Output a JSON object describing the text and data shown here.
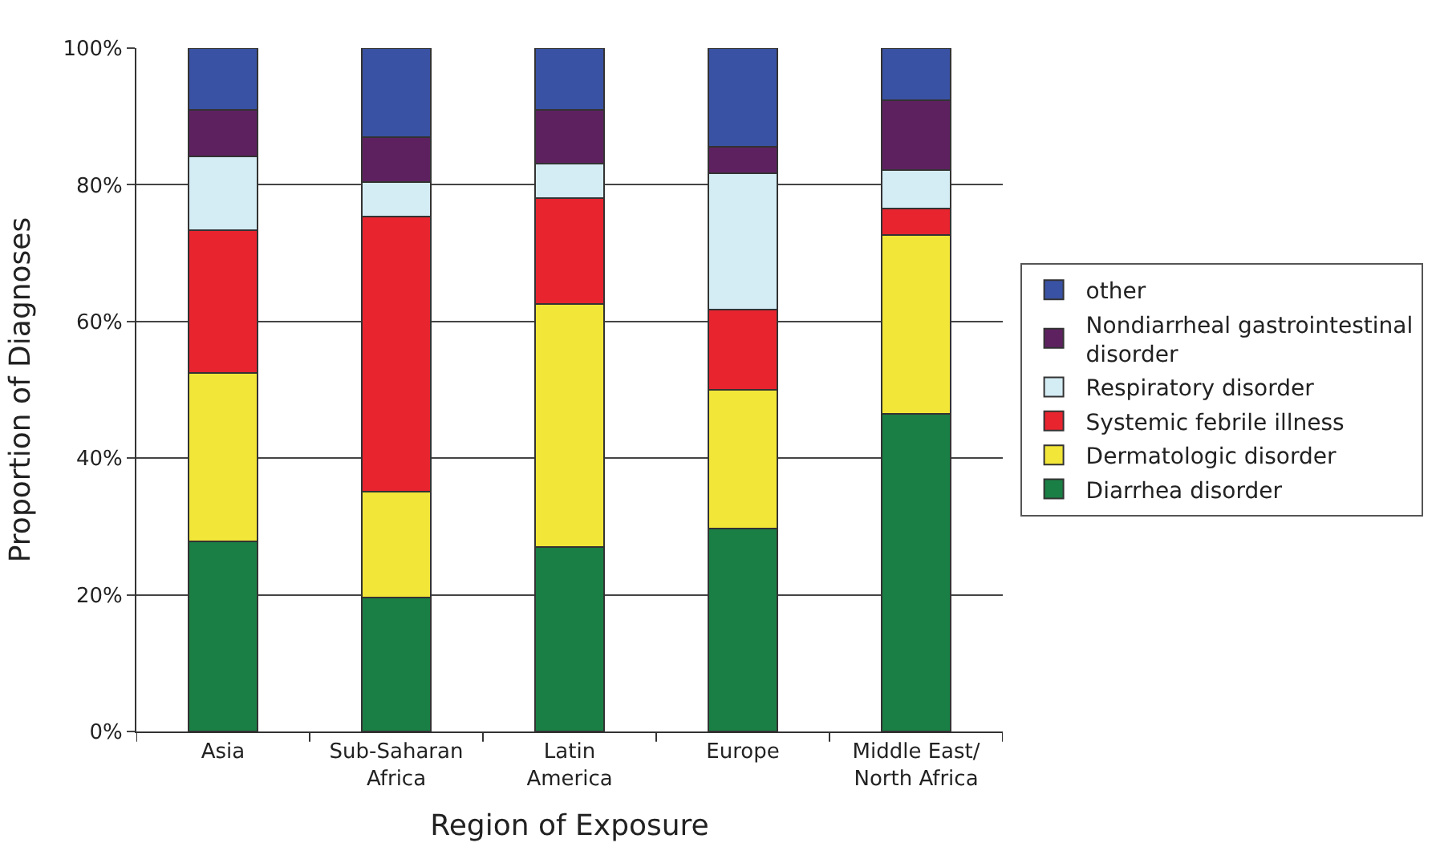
{
  "chart_data": {
    "type": "bar",
    "stacked": true,
    "xlabel": "Region of Exposure",
    "ylabel": "Proportion of Diagnoses",
    "categories": [
      "Asia",
      "Sub-Saharan\nAfrica",
      "Latin\nAmerica",
      "Europe",
      "Middle East/\nNorth Africa"
    ],
    "series": [
      {
        "name": "Diarrhea disorder",
        "color": "#1a7f45",
        "values": [
          27.8,
          19.6,
          27.0,
          29.7,
          46.5
        ]
      },
      {
        "name": "Dermatologic disorder",
        "color": "#f2e638",
        "values": [
          24.7,
          15.5,
          35.6,
          20.3,
          26.2
        ]
      },
      {
        "name": "Systemic febrile illness",
        "color": "#e8242f",
        "values": [
          20.8,
          40.2,
          15.5,
          11.7,
          3.8
        ]
      },
      {
        "name": "Respiratory disorder",
        "color": "#d4ecf4",
        "values": [
          10.8,
          5.1,
          5.0,
          20.0,
          5.7
        ]
      },
      {
        "name": "Nondiarrheal gastrointestinal disorder",
        "color": "#5e2160",
        "values": [
          6.9,
          6.6,
          7.9,
          3.9,
          10.2
        ]
      },
      {
        "name": "other",
        "color": "#3a52a3",
        "values": [
          9.0,
          13.0,
          9.0,
          14.4,
          7.6
        ]
      }
    ],
    "ylim": [
      0,
      100
    ],
    "yticks": [
      {
        "value": 0,
        "label": "0%"
      },
      {
        "value": 20,
        "label": "20%"
      },
      {
        "value": 40,
        "label": "40%"
      },
      {
        "value": 60,
        "label": "60%"
      },
      {
        "value": 80,
        "label": "80%"
      },
      {
        "value": 100,
        "label": "100%"
      }
    ],
    "grid": "y",
    "legend": "right"
  }
}
